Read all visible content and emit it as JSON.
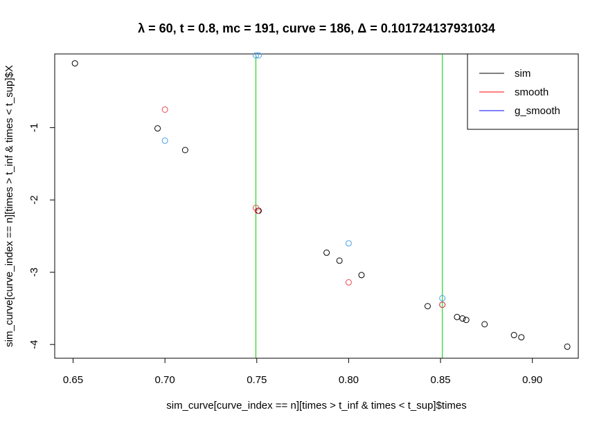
{
  "chart_data": {
    "type": "scatter",
    "title": "λ = 60, t = 0.8, mc = 191, curve = 186, Δ = 0.101724137931034",
    "xlabel": "sim_curve[curve_index == n][times > t_inf & times < t_sup]$times",
    "ylabel": "sim_curve[curve_index == n][times > t_inf & times < t_sup]$X",
    "xlim": [
      0.64,
      0.925
    ],
    "ylim": [
      -4.19,
      0.02
    ],
    "xticks": [
      0.65,
      0.7,
      0.75,
      0.8,
      0.85,
      0.9
    ],
    "xtick_labels": [
      "0.65",
      "0.70",
      "0.75",
      "0.80",
      "0.85",
      "0.90"
    ],
    "yticks": [
      -1,
      -2,
      -3,
      -4
    ],
    "ytick_labels": [
      "-1",
      "-2",
      "-3",
      "-4"
    ],
    "legend_position": "top-right",
    "legend": [
      {
        "label": "sim",
        "color": "#000000"
      },
      {
        "label": "smooth",
        "color": "#ff0000"
      },
      {
        "label": "g_smooth",
        "color": "#0000ff"
      }
    ],
    "vlines": [
      {
        "x": 0.7495,
        "color": "#00cd00"
      },
      {
        "x": 0.851,
        "color": "#00cd00"
      }
    ],
    "series": [
      {
        "color": "#000000",
        "x": [
          0.651,
          0.696,
          0.711,
          0.751,
          0.788,
          0.795,
          0.807,
          0.843,
          0.851,
          0.859,
          0.862,
          0.864,
          0.874,
          0.89,
          0.894,
          0.919
        ],
        "y": [
          -0.11,
          -1.01,
          -1.31,
          -2.15,
          -2.73,
          -2.84,
          -3.04,
          -3.47,
          -3.45,
          -3.62,
          -3.64,
          -3.66,
          -3.72,
          -3.87,
          -3.9,
          -4.03
        ]
      },
      {
        "color": "#e8474f",
        "x": [
          0.7,
          0.7495,
          0.7505,
          0.8,
          0.851
        ],
        "y": [
          -0.75,
          -2.11,
          -2.15,
          -3.14,
          -3.45
        ]
      },
      {
        "color": "#4aa0e8",
        "x": [
          0.7,
          0.7495,
          0.751,
          0.8,
          0.851
        ],
        "y": [
          -1.18,
          0.0,
          0.0,
          -2.6,
          -3.36
        ]
      }
    ]
  }
}
